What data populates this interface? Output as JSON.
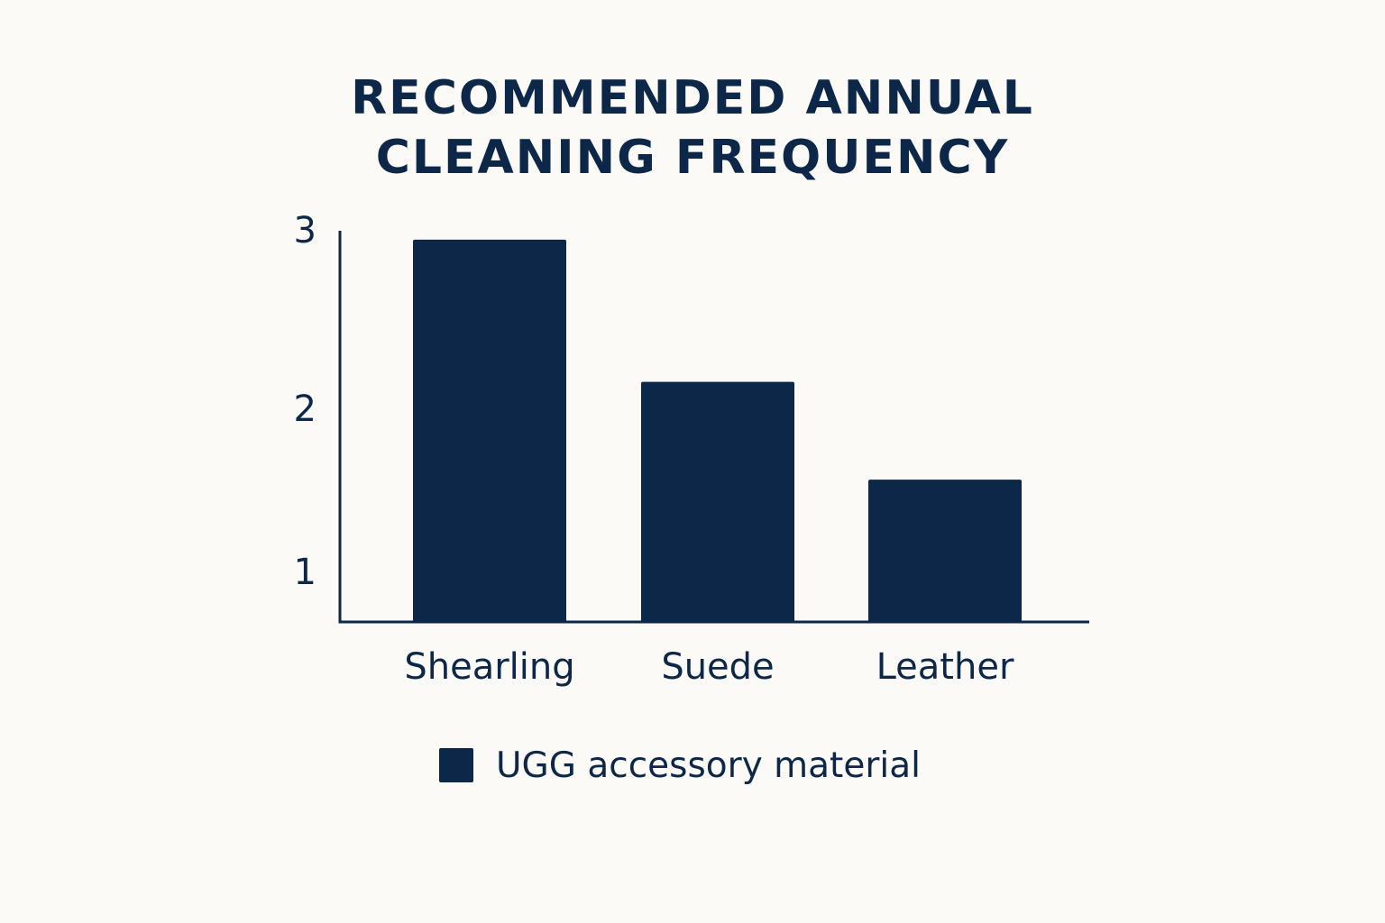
{
  "chart_data": {
    "type": "bar",
    "title_lines": [
      "RECOMMENDED ANNUAL",
      "CLEANING FREQUENCY"
    ],
    "categories": [
      "Shearling",
      "Suede",
      "Leather"
    ],
    "series": [
      {
        "name": "UGG accessory material",
        "values": [
          2.95,
          2.15,
          1.6
        ]
      }
    ],
    "y_ticks": [
      1,
      2,
      3
    ],
    "ylim": [
      0.8,
      3.0
    ],
    "grid": false,
    "legend_position": "bottom",
    "colors": {
      "bar": "#0c2748",
      "axis": "#0d2748",
      "background": "#fbfaf6"
    }
  }
}
